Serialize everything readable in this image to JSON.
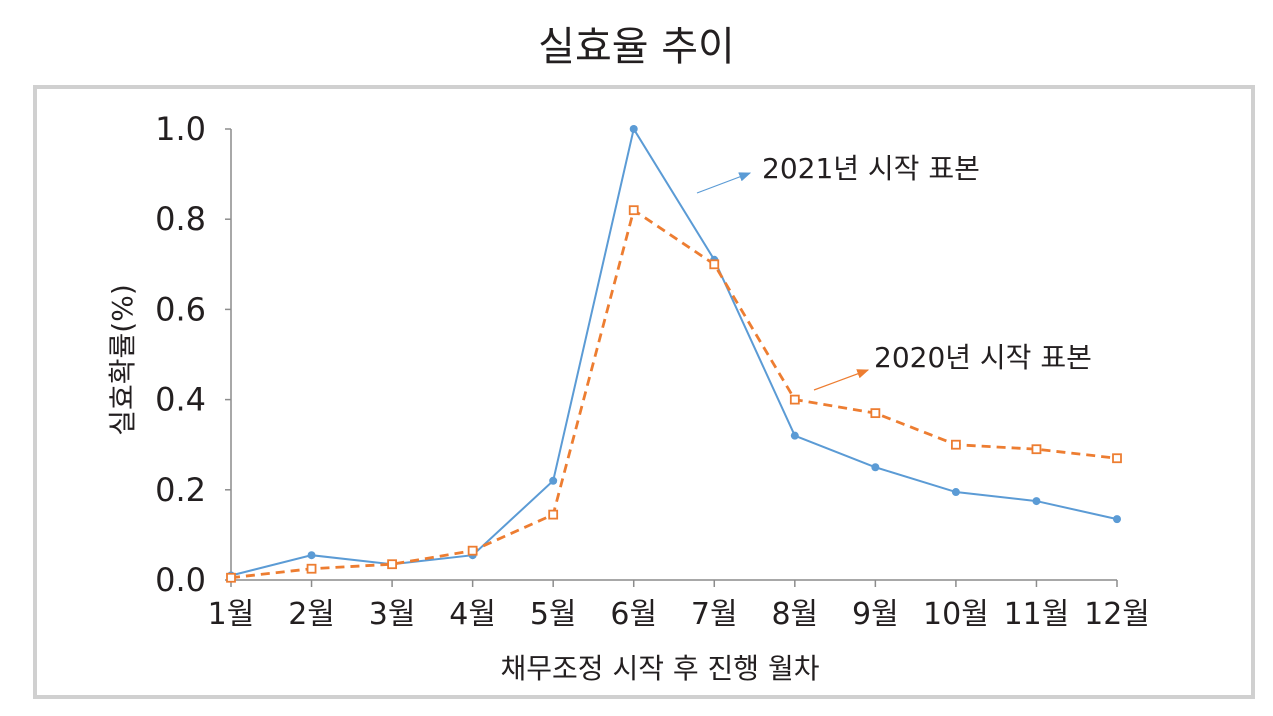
{
  "chart_data": {
    "type": "line",
    "title": "실효율 추이",
    "xlabel": "채무조정 시작 후 진행 월차",
    "ylabel": "실효확률(%)",
    "categories": [
      "1월",
      "2월",
      "3월",
      "4월",
      "5월",
      "6월",
      "7월",
      "8월",
      "9월",
      "10월",
      "11월",
      "12월"
    ],
    "ylim": [
      0,
      1.0
    ],
    "yticks": [
      "0.0",
      "0.2",
      "0.4",
      "0.6",
      "0.8",
      "1.0"
    ],
    "grid": false,
    "series": [
      {
        "name": "2021년 시작 표본",
        "color": "#5b9bd5",
        "marker": "filled-circle",
        "line_style": "solid",
        "values": [
          0.01,
          0.055,
          0.035,
          0.055,
          0.22,
          1.0,
          0.71,
          0.32,
          0.25,
          0.195,
          0.175,
          0.135
        ]
      },
      {
        "name": "2020년 시작 표본",
        "color": "#ed7d31",
        "marker": "open-square",
        "line_style": "dashed",
        "values": [
          0.005,
          0.025,
          0.035,
          0.065,
          0.145,
          0.82,
          0.7,
          0.4,
          0.37,
          0.3,
          0.29,
          0.27
        ]
      }
    ]
  }
}
